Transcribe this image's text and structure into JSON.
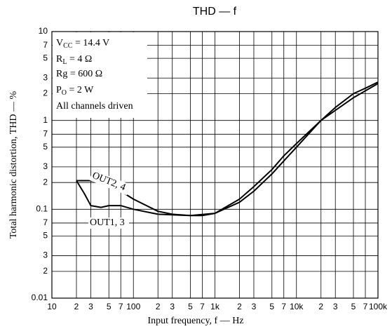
{
  "chart_data": {
    "type": "line",
    "title": "THD — f",
    "x_label": "Input frequency, f — Hz",
    "y_label": "Total harmonic distortion, THD — %",
    "log_x": true,
    "log_y": true,
    "grid": true,
    "xlim": [
      10,
      100000
    ],
    "ylim": [
      0.01,
      10
    ],
    "xticks": [
      10,
      {
        "value": 20,
        "label": "2"
      },
      {
        "value": 30,
        "label": "3"
      },
      {
        "value": 50,
        "label": "5"
      },
      {
        "value": 70,
        "label": "7"
      },
      100,
      {
        "value": 200,
        "label": "2"
      },
      {
        "value": 300,
        "label": "3"
      },
      {
        "value": 500,
        "label": "5"
      },
      {
        "value": 700,
        "label": "7"
      },
      {
        "value": 1000,
        "label": "1k"
      },
      {
        "value": 2000,
        "label": "2"
      },
      {
        "value": 3000,
        "label": "3"
      },
      {
        "value": 5000,
        "label": "5"
      },
      {
        "value": 7000,
        "label": "7"
      },
      {
        "value": 10000,
        "label": "10k"
      },
      {
        "value": 20000,
        "label": "2"
      },
      {
        "value": 30000,
        "label": "3"
      },
      {
        "value": 50000,
        "label": "5"
      },
      {
        "value": 70000,
        "label": "7"
      },
      {
        "value": 100000,
        "label": "100k"
      }
    ],
    "yticks": [
      0.01,
      {
        "value": 0.02,
        "label": "2"
      },
      {
        "value": 0.03,
        "label": "3"
      },
      {
        "value": 0.05,
        "label": "5"
      },
      {
        "value": 0.07,
        "label": "7"
      },
      0.1,
      {
        "value": 0.2,
        "label": "2"
      },
      {
        "value": 0.3,
        "label": "3"
      },
      {
        "value": 0.5,
        "label": "5"
      },
      {
        "value": 0.7,
        "label": "7"
      },
      1,
      {
        "value": 2,
        "label": "2"
      },
      {
        "value": 3,
        "label": "3"
      },
      {
        "value": 5,
        "label": "5"
      },
      {
        "value": 7,
        "label": "7"
      },
      10
    ],
    "conditions": [
      {
        "symbol": "V",
        "sub": "CC",
        "text": " = 14.4 V"
      },
      {
        "symbol": "R",
        "sub": "L",
        "text": " = 4 Ω"
      },
      {
        "symbol": "Rg",
        "text": " = 600  Ω"
      },
      {
        "symbol": "P",
        "sub": "O",
        "text": " = 2 W"
      },
      {
        "symbol": "All channels driven"
      }
    ],
    "series": [
      {
        "name": "OUT2, 4",
        "color": "#000000",
        "x": [
          20,
          30,
          50,
          70,
          100,
          200,
          300,
          500,
          700,
          1000,
          2000,
          3000,
          5000,
          7000,
          10000,
          20000,
          30000,
          50000,
          70000,
          100000
        ],
        "values": [
          0.21,
          0.21,
          0.19,
          0.16,
          0.13,
          0.095,
          0.088,
          0.085,
          0.085,
          0.09,
          0.12,
          0.16,
          0.25,
          0.35,
          0.5,
          1.0,
          1.4,
          2.0,
          2.3,
          2.7
        ]
      },
      {
        "name": "OUT1, 3",
        "color": "#000000",
        "x": [
          20,
          25,
          30,
          40,
          50,
          70,
          100,
          200,
          500,
          1000,
          2000,
          3000,
          5000,
          7000,
          10000,
          20000,
          50000,
          100000
        ],
        "values": [
          0.21,
          0.15,
          0.11,
          0.105,
          0.11,
          0.11,
          0.1,
          0.088,
          0.085,
          0.09,
          0.13,
          0.18,
          0.28,
          0.4,
          0.55,
          1.0,
          1.8,
          2.6
        ]
      }
    ]
  }
}
